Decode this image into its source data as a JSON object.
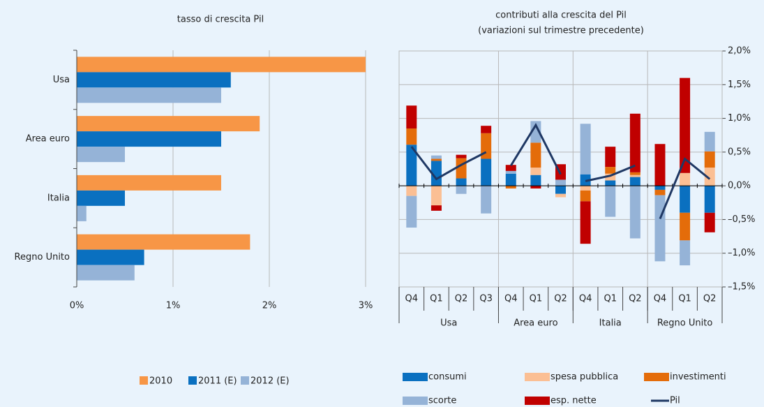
{
  "chart_data": [
    {
      "type": "bar",
      "orientation": "horizontal",
      "title": "tasso di crescita Pil",
      "categories": [
        "Usa",
        "Area euro",
        "Italia",
        "Regno Unito"
      ],
      "series": [
        {
          "name": "2010",
          "color": "#f79646",
          "values": [
            3.0,
            1.9,
            1.5,
            1.8
          ]
        },
        {
          "name": "2011 (E)",
          "color": "#0a70c0",
          "values": [
            1.6,
            1.5,
            0.5,
            0.7
          ]
        },
        {
          "name": "2012 (E)",
          "color": "#95b3d7",
          "values": [
            1.5,
            0.5,
            0.1,
            0.6
          ]
        }
      ],
      "xlim": [
        0,
        3
      ],
      "xticks": [
        {
          "value": 0,
          "label": "0%"
        },
        {
          "value": 1,
          "label": "1%"
        },
        {
          "value": 2,
          "label": "2%"
        },
        {
          "value": 3,
          "label": "3%"
        }
      ],
      "grid": true
    },
    {
      "type": "bar",
      "stacked": true,
      "title": "contributi alla crescita del Pil",
      "subtitle": "(variazioni sul trimestre precedente)",
      "groups": [
        {
          "name": "Usa",
          "categories": [
            "Q4",
            "Q1",
            "Q2",
            "Q3"
          ]
        },
        {
          "name": "Area euro",
          "categories": [
            "Q4",
            "Q1",
            "Q2"
          ]
        },
        {
          "name": "Italia",
          "categories": [
            "Q4",
            "Q1",
            "Q2"
          ]
        },
        {
          "name": "Regno Unito",
          "categories": [
            "Q4",
            "Q1",
            "Q2"
          ]
        }
      ],
      "series": [
        {
          "name": "consumi",
          "color": "#0a70c0",
          "values": [
            0.61,
            0.37,
            0.11,
            0.4,
            0.18,
            0.16,
            -0.12,
            0.17,
            0.08,
            0.13,
            -0.06,
            -0.4,
            -0.4
          ]
        },
        {
          "name": "spesa pubblica",
          "color": "#fbbf94",
          "values": [
            -0.15,
            -0.29,
            0,
            0,
            0,
            0.11,
            -0.05,
            -0.07,
            0.1,
            0.03,
            0,
            0.19,
            0.27
          ]
        },
        {
          "name": "investimenti",
          "color": "#e46c0a",
          "values": [
            0.24,
            0.03,
            0.3,
            0.38,
            -0.04,
            0.37,
            0,
            -0.16,
            0.1,
            0.04,
            -0.08,
            -0.41,
            0.24
          ]
        },
        {
          "name": "scorte",
          "color": "#95b3d7",
          "values": [
            -0.47,
            0.05,
            -0.12,
            -0.41,
            0.04,
            0.32,
            0.09,
            0.75,
            -0.46,
            -0.78,
            -0.98,
            -0.37,
            0.29
          ]
        },
        {
          "name": "esp. nette",
          "color": "#c00000",
          "values": [
            0.34,
            -0.08,
            0.05,
            0.11,
            0.09,
            -0.04,
            0.23,
            -0.63,
            0.3,
            0.87,
            0.62,
            1.41,
            -0.29
          ]
        },
        {
          "name": "Pil",
          "type": "line",
          "color": "#1f3864",
          "values": [
            0.58,
            0.1,
            0.31,
            0.5,
            0.3,
            0.9,
            0.17,
            0.07,
            0.15,
            0.3,
            -0.49,
            0.4,
            0.1
          ]
        }
      ],
      "ylim": [
        -1.5,
        2.0
      ],
      "yticks": [
        {
          "value": -1.5,
          "label": "–1,5%"
        },
        {
          "value": -1,
          "label": "–1,0%"
        },
        {
          "value": -0.5,
          "label": "–0,5%"
        },
        {
          "value": 0,
          "label": "0,0%"
        },
        {
          "value": 0.5,
          "label": "0,5%"
        },
        {
          "value": 1,
          "label": "1,0%"
        },
        {
          "value": 1.5,
          "label": "1,5%"
        },
        {
          "value": 2,
          "label": "2,0%"
        }
      ],
      "grid": true
    }
  ]
}
